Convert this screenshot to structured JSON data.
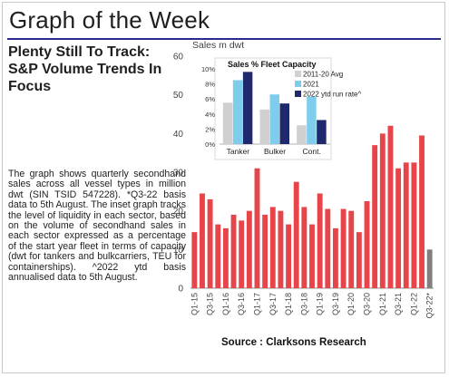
{
  "header": {
    "title": "Graph of the Week",
    "subtitle": "Plenty Still To Track: S&P Volume Trends In Focus",
    "description": "The graph shows quarterly secondhand sales across all vessel types in million dwt (SIN TSID 547228). *Q3-22 basis data to 5th August. The inset graph tracks the level of liquidity in each sector, based on the volume of secondhand sales in each sector expressed as a percentage of the start year fleet in terms of capacity (dwt for tankers and bulkcarriers, TEU for containerships). ^2022 ytd basis annualised data to 5th August.",
    "source": "Source : Clarksons Research"
  },
  "colors": {
    "accent_rule": "#2b2b8f",
    "bar_main": "#e8454a",
    "bar_partial": "#808080",
    "inset_2011_20": "#d0d0d0",
    "inset_2021": "#7fcdec",
    "inset_2022": "#1f2a6e"
  },
  "chart_data": [
    {
      "type": "bar",
      "title": "",
      "ylabel": "Sales m dwt",
      "xlabel": "",
      "ylim": [
        0,
        60
      ],
      "yticks": [
        0,
        10,
        20,
        30,
        40,
        50,
        60
      ],
      "grid": false,
      "categories": [
        "Q1-15",
        "Q2-15",
        "Q3-15",
        "Q4-15",
        "Q1-16",
        "Q2-16",
        "Q3-16",
        "Q4-16",
        "Q1-17",
        "Q2-17",
        "Q3-17",
        "Q4-17",
        "Q1-18",
        "Q2-18",
        "Q3-18",
        "Q4-18",
        "Q1-19",
        "Q2-19",
        "Q3-19",
        "Q4-19",
        "Q1-20",
        "Q2-20",
        "Q3-20",
        "Q4-20",
        "Q1-21",
        "Q2-21",
        "Q3-21",
        "Q4-21",
        "Q1-22",
        "Q2-22",
        "Q3-22*"
      ],
      "xtick_labels": [
        "Q1-15",
        "Q3-15",
        "Q1-16",
        "Q3-16",
        "Q1-17",
        "Q3-17",
        "Q1-18",
        "Q3-18",
        "Q1-19",
        "Q3-19",
        "Q1-20",
        "Q3-20",
        "Q1-21",
        "Q3-21",
        "Q1-22",
        "Q3-22*"
      ],
      "values": [
        14.5,
        24.5,
        23,
        16.5,
        15.5,
        19,
        17.5,
        20,
        31,
        19,
        21,
        20,
        16.5,
        27.5,
        21,
        16.5,
        24.5,
        20.5,
        15.5,
        20.5,
        20,
        14.5,
        22.5,
        37,
        40,
        42,
        31,
        32.5,
        32.5,
        39.5,
        10
      ],
      "partial_index": 30
    },
    {
      "type": "bar",
      "title": "Sales % Fleet Capacity",
      "ylim": [
        0,
        10
      ],
      "yticks": [
        "0%",
        "2%",
        "4%",
        "6%",
        "8%",
        "10%"
      ],
      "categories": [
        "Tanker",
        "Bulker",
        "Cont."
      ],
      "legend_position": "top-right",
      "series": [
        {
          "name": "2011-20 Avg",
          "values": [
            5.5,
            4.6,
            2.5
          ]
        },
        {
          "name": "2021",
          "values": [
            8.5,
            6.6,
            6.3
          ]
        },
        {
          "name": "2022 ytd run rate^",
          "values": [
            9.6,
            5.4,
            3.2
          ]
        }
      ]
    }
  ]
}
